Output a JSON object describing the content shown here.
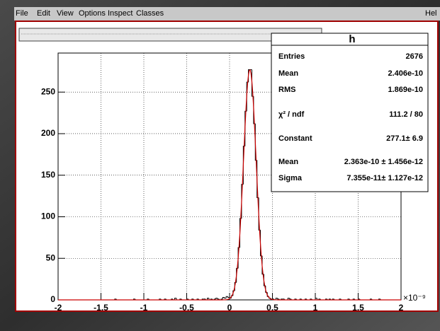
{
  "menu": [
    "File",
    "Edit",
    "View",
    "Options",
    "Inspect",
    "Classes",
    "Hel"
  ],
  "stats": {
    "title": "h",
    "rows": [
      [
        "Entries",
        "2676"
      ],
      [
        "Mean",
        "2.406e-10"
      ],
      [
        "RMS",
        "1.869e-10"
      ],
      [
        "χ² / ndf",
        "111.2 / 80"
      ],
      [
        "Constant",
        "277.1± 6.9"
      ],
      [
        "Mean",
        "2.363e-10 ± 1.456e-12"
      ],
      [
        "Sigma",
        "7.355e-11± 1.127e-12"
      ]
    ]
  },
  "chart_data": {
    "type": "histogram",
    "color": "#000000",
    "fit_color": "#cc0000",
    "grid": true,
    "x_multiplier": {
      "value": 1e-09,
      "label": "×10⁻⁹"
    },
    "fit": {
      "constant": 277.1,
      "mean": 2.363e-10,
      "sigma": 7.355e-11
    },
    "xlim": [
      -2,
      2
    ],
    "xticks": [
      -2,
      -1.5,
      -1,
      -0.5,
      0,
      0.5,
      1,
      1.5,
      2
    ],
    "ylim": [
      0,
      297
    ],
    "yticks": [
      0,
      50,
      100,
      150,
      200,
      250
    ],
    "bins": [
      -2,
      -1.98,
      -1.96,
      -1.94,
      -1.92,
      -1.9,
      -1.88,
      -1.86,
      -1.84,
      -1.82,
      -1.8,
      -1.78,
      -1.76,
      -1.74,
      -1.72,
      -1.7,
      -1.68,
      -1.66,
      -1.64,
      -1.62,
      -1.6,
      -1.58,
      -1.56,
      -1.54,
      -1.52,
      -1.5,
      -1.48,
      -1.46,
      -1.44,
      -1.42,
      -1.4,
      -1.38,
      -1.36,
      -1.34,
      -1.32,
      -1.3,
      -1.28,
      -1.26,
      -1.24,
      -1.22,
      -1.2,
      -1.18,
      -1.16,
      -1.14,
      -1.12,
      -1.1,
      -1.08,
      -1.06,
      -1.04,
      -1.02,
      -1,
      -0.98,
      -0.96,
      -0.94,
      -0.92,
      -0.9,
      -0.88,
      -0.86,
      -0.84,
      -0.82,
      -0.8,
      -0.78,
      -0.76,
      -0.74,
      -0.72,
      -0.7,
      -0.68,
      -0.66,
      -0.64,
      -0.62,
      -0.6,
      -0.58,
      -0.56,
      -0.54,
      -0.52,
      -0.5,
      -0.48,
      -0.46,
      -0.44,
      -0.42,
      -0.4,
      -0.38,
      -0.36,
      -0.34,
      -0.32,
      -0.3,
      -0.28,
      -0.26,
      -0.24,
      -0.22,
      -0.2,
      -0.18,
      -0.16,
      -0.14,
      -0.12,
      -0.1,
      -0.08,
      -0.06,
      -0.04,
      -0.02,
      0,
      0.02,
      0.04,
      0.06,
      0.08,
      0.1,
      0.12,
      0.14,
      0.16,
      0.18,
      0.2,
      0.22,
      0.24,
      0.26,
      0.28,
      0.3,
      0.32,
      0.34,
      0.36,
      0.38,
      0.4,
      0.42,
      0.44,
      0.46,
      0.48,
      0.5,
      0.52,
      0.54,
      0.56,
      0.58,
      0.6,
      0.62,
      0.64,
      0.66,
      0.68,
      0.7,
      0.72,
      0.74,
      0.76,
      0.78,
      0.8,
      0.82,
      0.84,
      0.86,
      0.88,
      0.9,
      0.92,
      0.94,
      0.96,
      0.98,
      1,
      1.02,
      1.04,
      1.06,
      1.08,
      1.1,
      1.12,
      1.14,
      1.16,
      1.18,
      1.2,
      1.22,
      1.24,
      1.26,
      1.28,
      1.3,
      1.32,
      1.34,
      1.36,
      1.38,
      1.4,
      1.42,
      1.44,
      1.46,
      1.48,
      1.5,
      1.52,
      1.54,
      1.56,
      1.58,
      1.6,
      1.62,
      1.64,
      1.66,
      1.68,
      1.7,
      1.72,
      1.74,
      1.76,
      1.78,
      1.8,
      1.82,
      1.84,
      1.86,
      1.88,
      1.9,
      1.92,
      1.94,
      1.96,
      1.98,
      2
    ],
    "values": [
      0,
      0,
      0,
      0,
      0,
      0,
      0,
      0,
      0,
      0,
      0,
      0,
      0,
      0,
      0,
      0,
      0,
      0,
      0,
      0,
      0,
      0,
      0,
      0,
      0,
      0,
      0,
      0,
      0,
      0,
      0,
      0,
      0,
      1,
      0,
      0,
      0,
      0,
      0,
      0,
      0,
      0,
      0,
      0,
      1,
      0,
      0,
      0,
      0,
      0,
      0,
      0,
      1,
      0,
      0,
      0,
      0,
      0,
      0,
      1,
      0,
      0,
      1,
      0,
      0,
      0,
      1,
      0,
      2,
      0,
      0,
      1,
      0,
      0,
      0,
      1,
      0,
      0,
      1,
      0,
      0,
      1,
      0,
      0,
      1,
      1,
      0,
      2,
      0,
      1,
      0,
      1,
      2,
      1,
      0,
      1,
      3,
      2,
      4,
      3,
      2,
      5,
      11,
      21,
      38,
      63,
      98,
      139,
      185,
      227,
      262,
      277,
      277,
      245,
      212,
      168,
      123,
      84,
      53,
      31,
      17,
      9,
      4,
      2,
      1,
      1,
      0,
      2,
      1,
      0,
      1,
      1,
      0,
      0,
      2,
      1,
      0,
      0,
      1,
      0,
      0,
      1,
      0,
      0,
      1,
      0,
      0,
      1,
      0,
      0,
      2,
      0,
      1,
      0,
      0,
      0,
      1,
      0,
      1,
      0,
      1,
      0,
      0,
      0,
      1,
      0,
      0,
      0,
      0,
      1,
      0,
      0,
      1,
      0,
      0,
      1,
      0,
      0,
      0,
      0,
      0,
      0,
      1,
      0,
      0,
      0,
      0,
      1,
      0,
      0,
      0,
      0,
      0,
      0,
      0,
      0,
      0,
      0,
      0,
      0
    ]
  }
}
